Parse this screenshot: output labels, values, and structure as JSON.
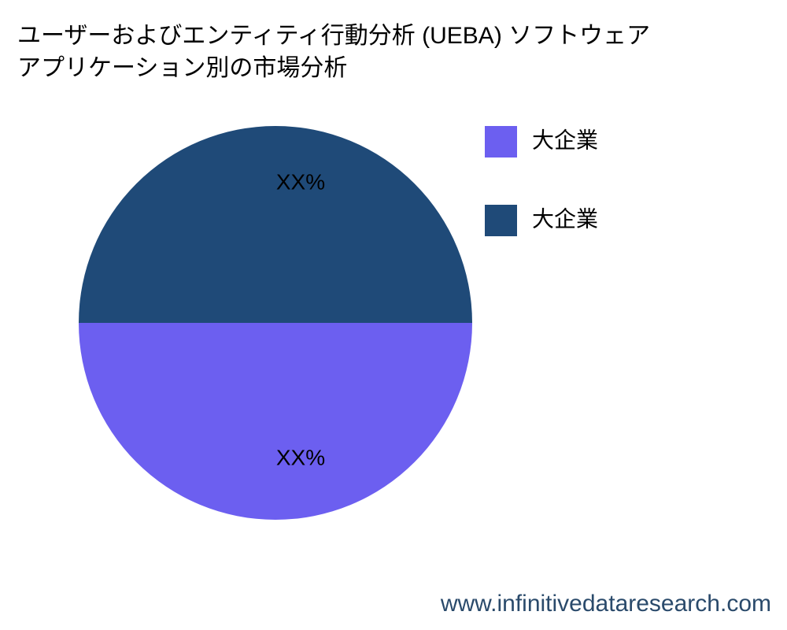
{
  "chart_data": {
    "type": "pie",
    "title": [
      "ユーザーおよびエンティティ行動分析 (UEBA) ソフトウェア",
      "アプリケーション別の市場分析"
    ],
    "categories": [
      "大企業",
      "大企業"
    ],
    "values": [
      50,
      50
    ],
    "value_labels": [
      "XX%",
      "XX%"
    ],
    "colors": [
      "#6c5ff0",
      "#1f4a78"
    ],
    "watermark": "www.infinitivedataresearch.com"
  }
}
